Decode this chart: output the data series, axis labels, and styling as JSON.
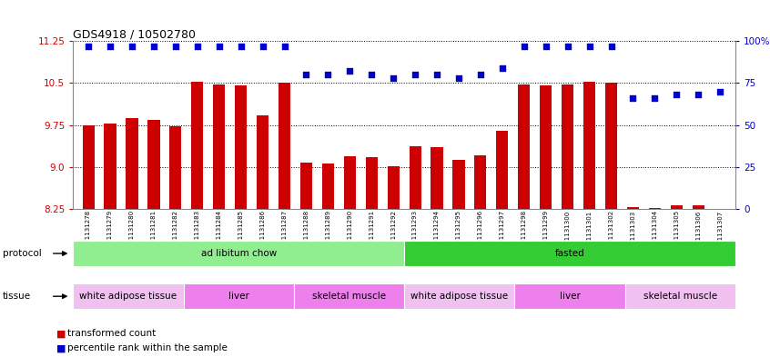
{
  "title": "GDS4918 / 10502780",
  "samples": [
    "GSM1131278",
    "GSM1131279",
    "GSM1131280",
    "GSM1131281",
    "GSM1131282",
    "GSM1131283",
    "GSM1131284",
    "GSM1131285",
    "GSM1131286",
    "GSM1131287",
    "GSM1131288",
    "GSM1131289",
    "GSM1131290",
    "GSM1131291",
    "GSM1131292",
    "GSM1131293",
    "GSM1131294",
    "GSM1131295",
    "GSM1131296",
    "GSM1131297",
    "GSM1131298",
    "GSM1131299",
    "GSM1131300",
    "GSM1131301",
    "GSM1131302",
    "GSM1131303",
    "GSM1131304",
    "GSM1131305",
    "GSM1131306",
    "GSM1131307"
  ],
  "bar_values": [
    9.75,
    9.78,
    9.88,
    9.84,
    9.72,
    10.52,
    10.48,
    10.45,
    9.92,
    10.5,
    9.07,
    9.06,
    9.19,
    9.18,
    9.01,
    9.37,
    9.35,
    9.12,
    9.2,
    9.65,
    10.48,
    10.45,
    10.48,
    10.52,
    10.5,
    8.28,
    8.27,
    8.31,
    8.32,
    8.25
  ],
  "percentile_values": [
    97,
    97,
    97,
    97,
    97,
    97,
    97,
    97,
    97,
    97,
    80,
    80,
    82,
    80,
    78,
    80,
    80,
    78,
    80,
    84,
    97,
    97,
    97,
    97,
    97,
    66,
    66,
    68,
    68,
    70
  ],
  "ylim_left": [
    8.25,
    11.25
  ],
  "ylim_right": [
    0,
    100
  ],
  "yticks_left": [
    8.25,
    9.0,
    9.75,
    10.5,
    11.25
  ],
  "yticks_right": [
    0,
    25,
    50,
    75,
    100
  ],
  "ytick_labels_right": [
    "0",
    "25",
    "50",
    "75",
    "100%"
  ],
  "protocol_labels": [
    {
      "text": "ad libitum chow",
      "start": 0,
      "end": 14,
      "color": "#90EE90"
    },
    {
      "text": "fasted",
      "start": 15,
      "end": 29,
      "color": "#33CC33"
    }
  ],
  "tissue_labels": [
    {
      "text": "white adipose tissue",
      "start": 0,
      "end": 4,
      "color": "#F0C0F0"
    },
    {
      "text": "liver",
      "start": 5,
      "end": 9,
      "color": "#EE80EE"
    },
    {
      "text": "skeletal muscle",
      "start": 10,
      "end": 14,
      "color": "#EE80EE"
    },
    {
      "text": "white adipose tissue",
      "start": 15,
      "end": 19,
      "color": "#F0C0F0"
    },
    {
      "text": "liver",
      "start": 20,
      "end": 24,
      "color": "#EE80EE"
    },
    {
      "text": "skeletal muscle",
      "start": 25,
      "end": 29,
      "color": "#F0C0F0"
    }
  ],
  "bar_color": "#CC0000",
  "dot_color": "#0000CC",
  "left_tick_color": "#CC0000",
  "right_tick_color": "#0000CC"
}
